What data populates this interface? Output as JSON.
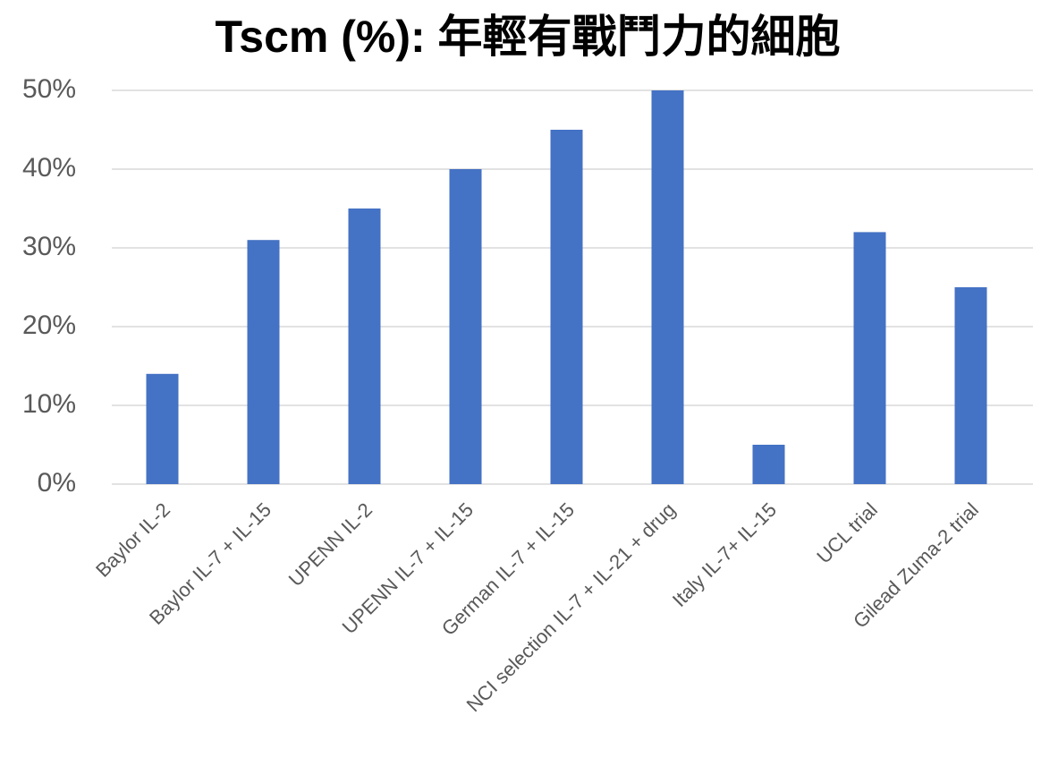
{
  "chart_data": {
    "type": "bar",
    "title": "Tscm (%): 年輕有戰鬥力的細胞",
    "categories": [
      "Baylor IL-2",
      "Baylor IL-7 + IL-15",
      "UPENN IL-2",
      "UPENN IL-7 + IL-15",
      "German IL-7 + IL-15",
      "NCI selection IL-7 + IL-21 + drug",
      "Italy IL-7+ IL-15",
      "UCL trial",
      "Gilead Zuma-2 trial"
    ],
    "values": [
      14,
      31,
      35,
      40,
      45,
      50,
      5,
      32,
      25
    ],
    "color": "#4472c4",
    "ylim": [
      0,
      50
    ],
    "yticks": [
      {
        "value": 0,
        "label": "0%"
      },
      {
        "value": 10,
        "label": "10%"
      },
      {
        "value": 20,
        "label": "20%"
      },
      {
        "value": 30,
        "label": "30%"
      },
      {
        "value": 40,
        "label": "40%"
      },
      {
        "value": 50,
        "label": "50%"
      }
    ],
    "grid": true
  }
}
